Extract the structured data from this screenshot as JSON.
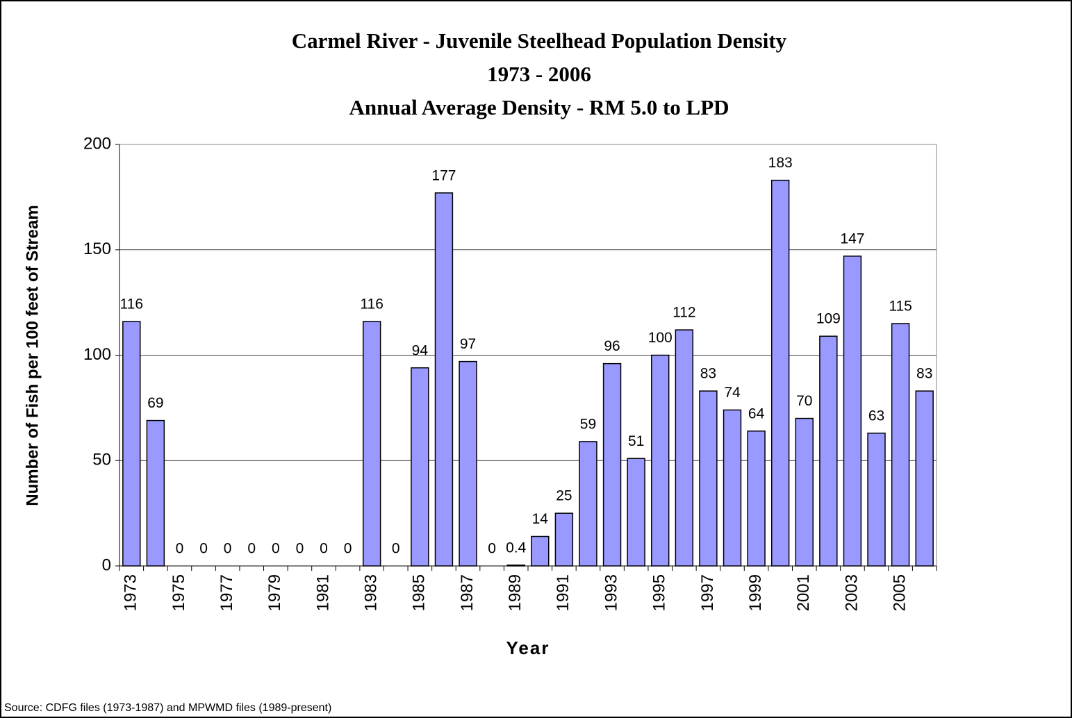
{
  "chart_data": {
    "type": "bar",
    "title": "Carmel River - Juvenile Steelhead Population Density",
    "subtitle": "1973 - 2006",
    "subtitle2": "Annual Average Density - RM 5.0 to LPD",
    "x_label": "Year",
    "y_label": "Number of Fish per 100 feet of Stream",
    "source": "Source: CDFG files (1973-1987) and MPWMD files (1989-present)",
    "categories": [
      "1973",
      null,
      "1975",
      null,
      "1977",
      null,
      "1979",
      null,
      "1981",
      null,
      "1983",
      null,
      "1985",
      null,
      "1987",
      null,
      "1989",
      null,
      "1991",
      null,
      "1993",
      null,
      "1995",
      null,
      "1997",
      null,
      "1999",
      null,
      "2001",
      null,
      "2003",
      null,
      "2005",
      null
    ],
    "values": [
      116,
      69,
      0,
      0,
      0,
      0,
      0,
      0,
      0,
      0,
      116,
      0,
      94,
      177,
      97,
      0,
      0.4,
      14,
      25,
      59,
      96,
      51,
      100,
      112,
      83,
      74,
      64,
      183,
      70,
      109,
      147,
      63,
      115,
      83
    ],
    "color": "#9999ff",
    "ylim": [
      0,
      200
    ],
    "yticks": [
      0,
      50,
      100,
      150,
      200
    ],
    "grid": true
  }
}
